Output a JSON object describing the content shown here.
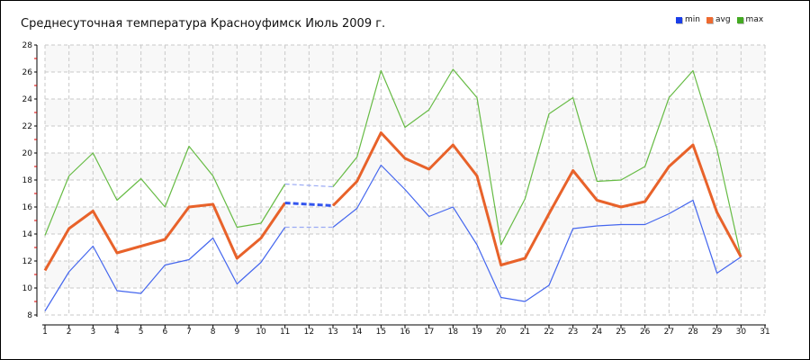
{
  "chart_data": {
    "type": "line",
    "title": "Среднесуточная температура Красноуфимск  Июль 2009 г.",
    "x": [
      1,
      2,
      3,
      4,
      5,
      6,
      7,
      8,
      9,
      10,
      11,
      12,
      13,
      14,
      15,
      16,
      17,
      18,
      19,
      20,
      21,
      22,
      23,
      24,
      25,
      26,
      27,
      28,
      29,
      30
    ],
    "xlim": [
      1,
      31
    ],
    "ylim": [
      8,
      28
    ],
    "xticks": [
      1,
      2,
      3,
      4,
      5,
      6,
      7,
      8,
      9,
      10,
      11,
      12,
      13,
      14,
      15,
      16,
      17,
      18,
      19,
      20,
      21,
      22,
      23,
      24,
      25,
      26,
      27,
      28,
      29,
      30,
      31
    ],
    "yticks": [
      8,
      10,
      12,
      14,
      16,
      18,
      20,
      22,
      24,
      26,
      28
    ],
    "grid": true,
    "legend_position": "top-right",
    "series": [
      {
        "name": "min",
        "color": "#4466ee",
        "values": [
          8.3,
          11.2,
          13.1,
          9.8,
          9.6,
          11.7,
          12.1,
          13.7,
          10.3,
          11.9,
          14.5,
          null,
          14.5,
          15.9,
          19.1,
          17.3,
          15.3,
          16.0,
          13.2,
          9.3,
          9.0,
          10.2,
          14.4,
          14.6,
          14.7,
          14.7,
          15.5,
          16.5,
          11.1,
          12.3
        ]
      },
      {
        "name": "avg",
        "color": "#e8622a",
        "values": [
          11.3,
          14.4,
          15.7,
          12.6,
          13.1,
          13.6,
          16.0,
          16.2,
          12.2,
          13.7,
          16.3,
          null,
          16.1,
          17.9,
          21.5,
          19.6,
          18.8,
          20.6,
          18.3,
          11.7,
          12.2,
          15.5,
          18.7,
          16.5,
          16.0,
          16.4,
          19.0,
          20.6,
          15.6,
          12.3
        ]
      },
      {
        "name": "max",
        "color": "#66bb44",
        "values": [
          13.9,
          18.3,
          20.0,
          16.5,
          18.1,
          16.0,
          20.5,
          18.3,
          14.5,
          14.8,
          17.7,
          null,
          17.5,
          19.7,
          26.1,
          21.9,
          23.2,
          26.2,
          24.1,
          13.2,
          16.6,
          22.9,
          24.1,
          17.9,
          18.0,
          19.0,
          24.1,
          26.1,
          20.3,
          12.3
        ]
      }
    ],
    "legend": [
      {
        "label": "min",
        "color": "#1a3ee8"
      },
      {
        "label": "avg",
        "color": "#ee6a30"
      },
      {
        "label": "max",
        "color": "#44aa22"
      }
    ]
  }
}
